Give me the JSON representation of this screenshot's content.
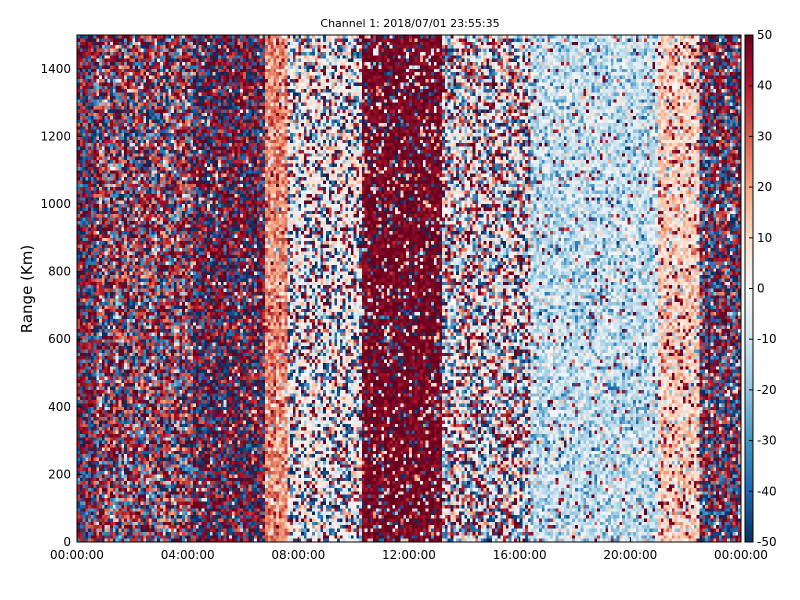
{
  "chart_data": {
    "type": "heatmap",
    "title": "Channel 1: 2018/07/01 23:55:35",
    "xlabel": "",
    "ylabel": "Range (Km)",
    "xlim": [
      "00:00:00",
      "00:00:00"
    ],
    "ylim": [
      0,
      1500
    ],
    "x_ticks": [
      "00:00:00",
      "04:00:00",
      "08:00:00",
      "12:00:00",
      "16:00:00",
      "20:00:00",
      "00:00:00"
    ],
    "y_ticks": [
      0,
      200,
      400,
      600,
      800,
      1000,
      1200,
      1400
    ],
    "colorbar": {
      "colormap": "RdBu_r",
      "vmin": -50,
      "vmax": 50,
      "ticks": [
        50,
        40,
        30,
        20,
        10,
        0,
        -10,
        -20,
        -30,
        -40,
        -50
      ],
      "colors": [
        "#053061",
        "#2166ac",
        "#4393c3",
        "#92c5de",
        "#d1e5f0",
        "#f7f7f7",
        "#fddbc7",
        "#f4a582",
        "#d6604d",
        "#b2182b",
        "#67001f"
      ]
    },
    "grid": false,
    "time_bands_hours": [
      {
        "start": 0.0,
        "end": 6.8,
        "description": "mixed strong positive and negative values"
      },
      {
        "start": 6.8,
        "end": 7.6,
        "description": "high positive values around 20-30"
      },
      {
        "start": 7.6,
        "end": 10.3,
        "description": "near zero with scattered values"
      },
      {
        "start": 10.3,
        "end": 13.2,
        "description": "mostly strong positive values with scattered negative values"
      },
      {
        "start": 13.2,
        "end": 16.4,
        "description": "mixed scattered values"
      },
      {
        "start": 16.4,
        "end": 21.0,
        "description": "mostly negative values around -10 to -20"
      },
      {
        "start": 21.0,
        "end": 22.5,
        "description": "positive values around 10-20"
      },
      {
        "start": 22.5,
        "end": 24.0,
        "description": "mixed strong positive and negative values"
      }
    ]
  }
}
